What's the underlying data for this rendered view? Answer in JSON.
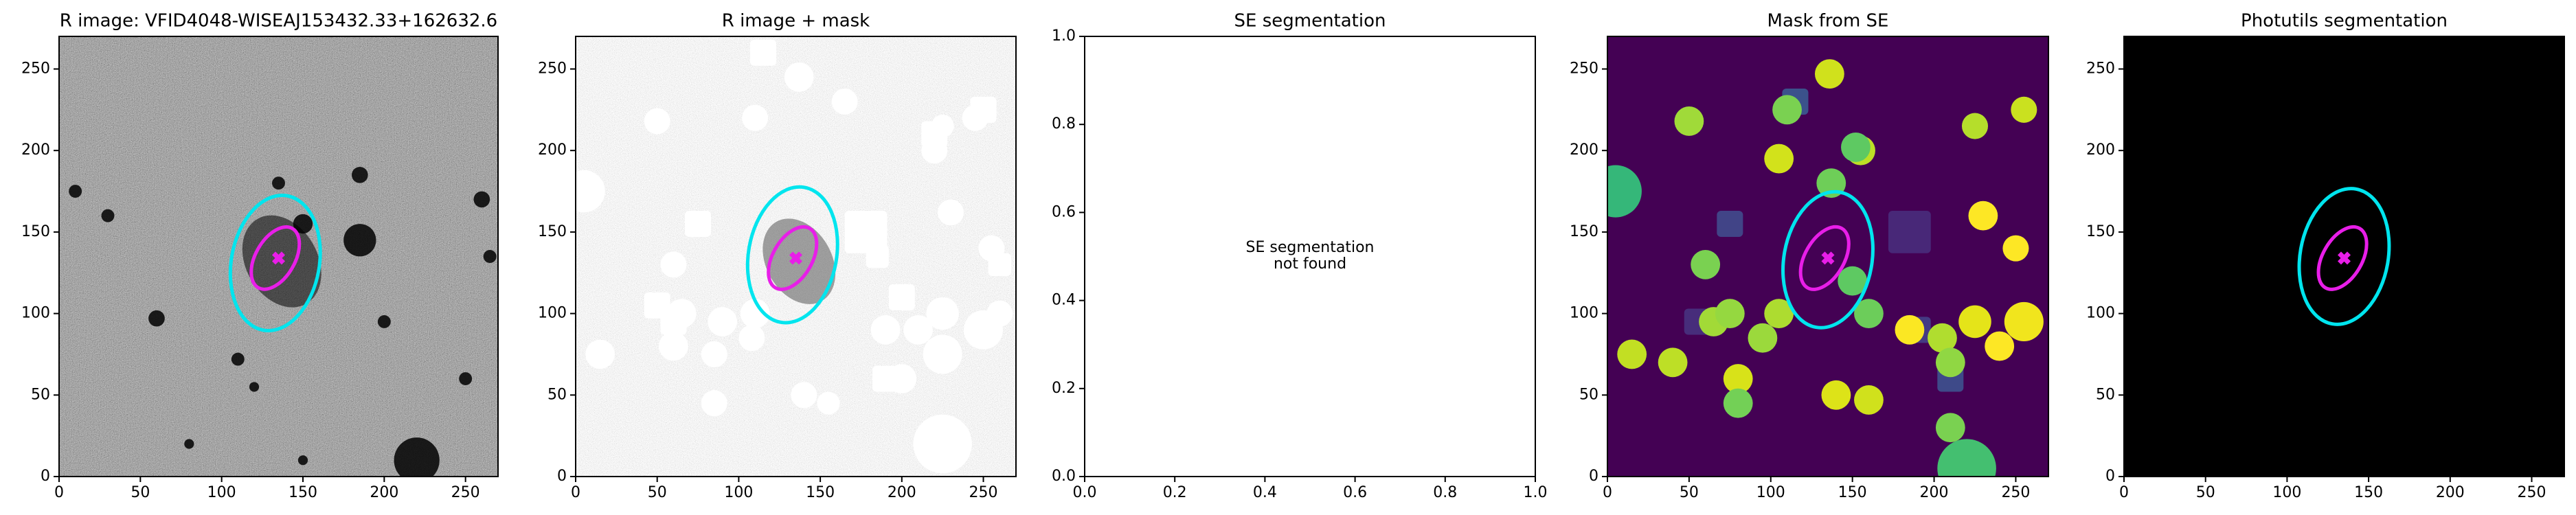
{
  "chart_data": [
    {
      "type": "image",
      "title": "R image: VFID4048-WISEAJ153432.33+162632.6",
      "background": "noise",
      "xlim": [
        0,
        270
      ],
      "ylim": [
        0,
        270
      ],
      "xticks": [
        0,
        50,
        100,
        150,
        200,
        250
      ],
      "yticks": [
        0,
        50,
        100,
        150,
        200,
        250
      ],
      "ellipses": [
        {
          "cx": 133,
          "cy": 131,
          "width": 84,
          "height": 54,
          "angle": 80,
          "color": "#00e5ee"
        },
        {
          "cx": 133,
          "cy": 134,
          "width": 42,
          "height": 24,
          "angle": 60,
          "color": "#e81ee8"
        }
      ],
      "marker": {
        "x": 135,
        "y": 134,
        "color": "#e81ee8"
      }
    },
    {
      "type": "image",
      "title": "R image + mask",
      "background": "masked",
      "xlim": [
        0,
        270
      ],
      "ylim": [
        0,
        270
      ],
      "xticks": [
        0,
        50,
        100,
        150,
        200,
        250
      ],
      "yticks": [
        0,
        50,
        100,
        150,
        200,
        250
      ],
      "ellipses": [
        {
          "cx": 133,
          "cy": 136,
          "width": 84,
          "height": 54,
          "angle": 80,
          "color": "#00e5ee"
        },
        {
          "cx": 133,
          "cy": 134,
          "width": 42,
          "height": 24,
          "angle": 60,
          "color": "#e81ee8"
        }
      ],
      "marker": {
        "x": 135,
        "y": 134,
        "color": "#e81ee8"
      }
    },
    {
      "type": "blank",
      "title": "SE segmentation",
      "annotation": "SE segmentation\nnot found",
      "xlim": [
        0,
        1
      ],
      "ylim": [
        0,
        1
      ],
      "xticks": [
        {
          "value": 0,
          "label": "0.0"
        },
        {
          "value": 0.2,
          "label": "0.2"
        },
        {
          "value": 0.4,
          "label": "0.4"
        },
        {
          "value": 0.6,
          "label": "0.6"
        },
        {
          "value": 0.8,
          "label": "0.8"
        },
        {
          "value": 1,
          "label": "1.0"
        }
      ],
      "yticks": [
        {
          "value": 0,
          "label": "0.0"
        },
        {
          "value": 0.2,
          "label": "0.2"
        },
        {
          "value": 0.4,
          "label": "0.4"
        },
        {
          "value": 0.6,
          "label": "0.6"
        },
        {
          "value": 0.8,
          "label": "0.8"
        },
        {
          "value": 1,
          "label": "1.0"
        }
      ]
    },
    {
      "type": "image",
      "title": "Mask from SE",
      "background": "segmap",
      "xlim": [
        0,
        270
      ],
      "ylim": [
        0,
        270
      ],
      "xticks": [
        0,
        50,
        100,
        150,
        200,
        250
      ],
      "yticks": [
        0,
        50,
        100,
        150,
        200,
        250
      ],
      "ellipses": [
        {
          "cx": 135,
          "cy": 133,
          "width": 84,
          "height": 54,
          "angle": 80,
          "color": "#00e5ee"
        },
        {
          "cx": 133,
          "cy": 134,
          "width": 42,
          "height": 24,
          "angle": 60,
          "color": "#e81ee8"
        }
      ],
      "marker": {
        "x": 135,
        "y": 134,
        "color": "#e81ee8"
      }
    },
    {
      "type": "image",
      "title": "Photutils segmentation",
      "background": "black",
      "xlim": [
        0,
        270
      ],
      "ylim": [
        0,
        270
      ],
      "xticks": [
        0,
        50,
        100,
        150,
        200,
        250
      ],
      "yticks": [
        0,
        50,
        100,
        150,
        200,
        250
      ],
      "ellipses": [
        {
          "cx": 135,
          "cy": 135,
          "width": 84,
          "height": 54,
          "angle": 80,
          "color": "#00e5ee"
        },
        {
          "cx": 134,
          "cy": 134,
          "width": 42,
          "height": 24,
          "angle": 60,
          "color": "#e81ee8"
        }
      ],
      "marker": {
        "x": 135,
        "y": 134,
        "color": "#e81ee8"
      }
    }
  ]
}
